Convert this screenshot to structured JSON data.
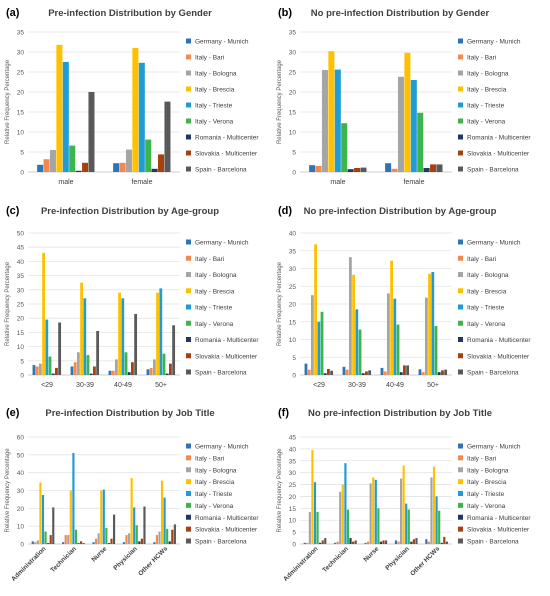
{
  "series_names": [
    "Germany - Munich",
    "Italy - Bari",
    "Italy - Bologna",
    "Italy - Brescia",
    "Italy - Trieste",
    "Italy - Verona",
    "Romania - Multicenter",
    "Slovakia - Multicenter",
    "Spain - Barcelona"
  ],
  "colors": [
    "#2e75b6",
    "#f4894b",
    "#a5a5a5",
    "#ffc000",
    "#1f9cd6",
    "#3eb54a",
    "#1f3864",
    "#a5400f",
    "#595959"
  ],
  "chart_data": [
    {
      "type": "bar",
      "panel_label": "(a)",
      "title": "Pre-infection Distribution by Gender",
      "ylabel": "Relative Frequency Percentage",
      "xlabel": "",
      "ylim": [
        0,
        35
      ],
      "yticks": [
        0,
        5,
        10,
        15,
        20,
        25,
        30,
        35
      ],
      "categories": [
        "male",
        "female"
      ],
      "grid": true,
      "legend_position": "right",
      "series": [
        {
          "name": "Germany - Munich",
          "values": [
            1.8,
            2.2
          ]
        },
        {
          "name": "Italy - Bari",
          "values": [
            3.2,
            2.3
          ]
        },
        {
          "name": "Italy - Bologna",
          "values": [
            5.5,
            5.6
          ]
        },
        {
          "name": "Italy - Brescia",
          "values": [
            31.8,
            31.0
          ]
        },
        {
          "name": "Italy - Trieste",
          "values": [
            27.5,
            27.3
          ]
        },
        {
          "name": "Italy - Verona",
          "values": [
            6.6,
            8.1
          ]
        },
        {
          "name": "Romania - Multicenter",
          "values": [
            0.3,
            0.8
          ]
        },
        {
          "name": "Slovakia - Multicenter",
          "values": [
            2.3,
            4.4
          ]
        },
        {
          "name": "Spain - Barcelona",
          "values": [
            20.0,
            17.6
          ]
        }
      ]
    },
    {
      "type": "bar",
      "panel_label": "(b)",
      "title": "No pre-infection Distribution by Gender",
      "ylabel": "Relative Frequency Percentage",
      "xlabel": "",
      "ylim": [
        0,
        35
      ],
      "yticks": [
        0,
        5,
        10,
        15,
        20,
        25,
        30,
        35
      ],
      "categories": [
        "male",
        "female"
      ],
      "grid": true,
      "legend_position": "right",
      "series": [
        {
          "name": "Germany - Munich",
          "values": [
            1.7,
            2.2
          ]
        },
        {
          "name": "Italy - Bari",
          "values": [
            1.5,
            0.8
          ]
        },
        {
          "name": "Italy - Bologna",
          "values": [
            25.5,
            23.8
          ]
        },
        {
          "name": "Italy - Brescia",
          "values": [
            30.2,
            29.8
          ]
        },
        {
          "name": "Italy - Trieste",
          "values": [
            25.6,
            23.0
          ]
        },
        {
          "name": "Italy - Verona",
          "values": [
            12.2,
            14.8
          ]
        },
        {
          "name": "Romania - Multicenter",
          "values": [
            0.7,
            1.0
          ]
        },
        {
          "name": "Slovakia - Multicenter",
          "values": [
            1.0,
            1.9
          ]
        },
        {
          "name": "Spain - Barcelona",
          "values": [
            1.1,
            1.9
          ]
        }
      ]
    },
    {
      "type": "bar",
      "panel_label": "(c)",
      "title": "Pre-infection Distribution by Age-group",
      "ylabel": "Relative Frequency Percentage",
      "xlabel": "",
      "ylim": [
        0,
        50
      ],
      "yticks": [
        0,
        5,
        10,
        15,
        20,
        25,
        30,
        35,
        40,
        45,
        50
      ],
      "categories": [
        "<29",
        "30-39",
        "40-49",
        "50+"
      ],
      "grid": true,
      "legend_position": "right",
      "series": [
        {
          "name": "Germany - Munich",
          "values": [
            3.5,
            3.0,
            1.5,
            2.0
          ]
        },
        {
          "name": "Italy - Bari",
          "values": [
            3.0,
            4.5,
            1.5,
            2.5
          ]
        },
        {
          "name": "Italy - Bologna",
          "values": [
            4.0,
            8.0,
            5.5,
            5.5
          ]
        },
        {
          "name": "Italy - Brescia",
          "values": [
            43.0,
            32.5,
            29.0,
            29.0
          ]
        },
        {
          "name": "Italy - Trieste",
          "values": [
            19.5,
            27.0,
            27.0,
            30.5
          ]
        },
        {
          "name": "Italy - Verona",
          "values": [
            6.5,
            7.0,
            8.0,
            7.5
          ]
        },
        {
          "name": "Romania - Multicenter",
          "values": [
            0.5,
            0.5,
            1.0,
            0.5
          ]
        },
        {
          "name": "Slovakia - Multicenter",
          "values": [
            2.5,
            3.0,
            4.5,
            4.0
          ]
        },
        {
          "name": "Spain - Barcelona",
          "values": [
            18.5,
            15.5,
            21.5,
            17.5
          ]
        }
      ]
    },
    {
      "type": "bar",
      "panel_label": "(d)",
      "title": "No pre-infection Distribution by Age-group",
      "ylabel": "Relative Frequency Percentage",
      "xlabel": "",
      "ylim": [
        0,
        40
      ],
      "yticks": [
        0,
        5,
        10,
        15,
        20,
        25,
        30,
        35,
        40
      ],
      "categories": [
        "<29",
        "30-39",
        "40-49",
        "50+"
      ],
      "grid": true,
      "legend_position": "right",
      "series": [
        {
          "name": "Germany - Munich",
          "values": [
            3.2,
            2.3,
            2.0,
            1.6
          ]
        },
        {
          "name": "Italy - Bari",
          "values": [
            1.5,
            1.5,
            1.0,
            0.8
          ]
        },
        {
          "name": "Italy - Bologna",
          "values": [
            22.5,
            33.2,
            23.0,
            21.8
          ]
        },
        {
          "name": "Italy - Brescia",
          "values": [
            36.8,
            28.2,
            32.2,
            28.5
          ]
        },
        {
          "name": "Italy - Trieste",
          "values": [
            15.0,
            18.5,
            21.5,
            29.0
          ]
        },
        {
          "name": "Italy - Verona",
          "values": [
            17.8,
            12.8,
            14.2,
            13.8
          ]
        },
        {
          "name": "Romania - Multicenter",
          "values": [
            0.5,
            0.5,
            0.8,
            0.8
          ]
        },
        {
          "name": "Slovakia - Multicenter",
          "values": [
            1.7,
            1.0,
            2.7,
            1.3
          ]
        },
        {
          "name": "Spain - Barcelona",
          "values": [
            1.2,
            1.3,
            2.7,
            1.5
          ]
        }
      ]
    },
    {
      "type": "bar",
      "panel_label": "(e)",
      "title": "Pre-infection Distribution by Job Title",
      "ylabel": "Relative Frequency Percentage",
      "xlabel": "",
      "ylim": [
        0,
        60
      ],
      "yticks": [
        0,
        10,
        20,
        30,
        40,
        50,
        60
      ],
      "categories": [
        "Administration",
        "Technician",
        "Nurse",
        "Physician",
        "Other HCWs"
      ],
      "grid": true,
      "legend_position": "right",
      "series": [
        {
          "name": "Germany - Munich",
          "values": [
            1.5,
            1.0,
            1.0,
            1.0,
            1.0
          ]
        },
        {
          "name": "Italy - Bari",
          "values": [
            1.0,
            5.0,
            3.0,
            5.0,
            5.0
          ]
        },
        {
          "name": "Italy - Bologna",
          "values": [
            2.0,
            5.0,
            6.0,
            6.0,
            7.0
          ]
        },
        {
          "name": "Italy - Brescia",
          "values": [
            34.5,
            30.0,
            30.0,
            37.0,
            35.5
          ]
        },
        {
          "name": "Italy - Trieste",
          "values": [
            27.5,
            51.0,
            30.5,
            20.5,
            26.0
          ]
        },
        {
          "name": "Italy - Verona",
          "values": [
            7.0,
            8.0,
            9.0,
            10.5,
            8.5
          ]
        },
        {
          "name": "Romania - Multicenter",
          "values": [
            0.5,
            0.5,
            0.5,
            1.5,
            1.5
          ]
        },
        {
          "name": "Slovakia - Multicenter",
          "values": [
            5.0,
            1.5,
            3.0,
            3.0,
            8.0
          ]
        },
        {
          "name": "Spain - Barcelona",
          "values": [
            20.5,
            0.5,
            16.5,
            21.0,
            11.0
          ]
        }
      ]
    },
    {
      "type": "bar",
      "panel_label": "(f)",
      "title": "No pre-infection Distribution by Job Title",
      "ylabel": "Relative Frequency Percentage",
      "xlabel": "",
      "ylim": [
        0,
        45
      ],
      "yticks": [
        0,
        5,
        10,
        15,
        20,
        25,
        30,
        35,
        40,
        45
      ],
      "categories": [
        "Administration",
        "Technician",
        "Nurse",
        "Physician",
        "Other HCWs"
      ],
      "grid": true,
      "legend_position": "right",
      "series": [
        {
          "name": "Germany - Munich",
          "values": [
            0.5,
            0.5,
            0.5,
            1.5,
            2.0
          ]
        },
        {
          "name": "Italy - Bari",
          "values": [
            0.5,
            1.0,
            1.0,
            1.0,
            1.0
          ]
        },
        {
          "name": "Italy - Bologna",
          "values": [
            13.5,
            22.0,
            25.5,
            27.5,
            28.0
          ]
        },
        {
          "name": "Italy - Brescia",
          "values": [
            39.5,
            25.0,
            28.0,
            33.0,
            32.5
          ]
        },
        {
          "name": "Italy - Trieste",
          "values": [
            26.0,
            34.0,
            27.0,
            17.0,
            20.0
          ]
        },
        {
          "name": "Italy - Verona",
          "values": [
            13.5,
            14.5,
            15.0,
            14.5,
            14.0
          ]
        },
        {
          "name": "Romania - Multicenter",
          "values": [
            0.5,
            2.5,
            1.0,
            1.0,
            0.5
          ]
        },
        {
          "name": "Slovakia - Multicenter",
          "values": [
            1.5,
            1.0,
            1.5,
            2.0,
            3.0
          ]
        },
        {
          "name": "Spain - Barcelona",
          "values": [
            2.5,
            1.5,
            1.5,
            2.5,
            1.0
          ]
        }
      ]
    }
  ]
}
